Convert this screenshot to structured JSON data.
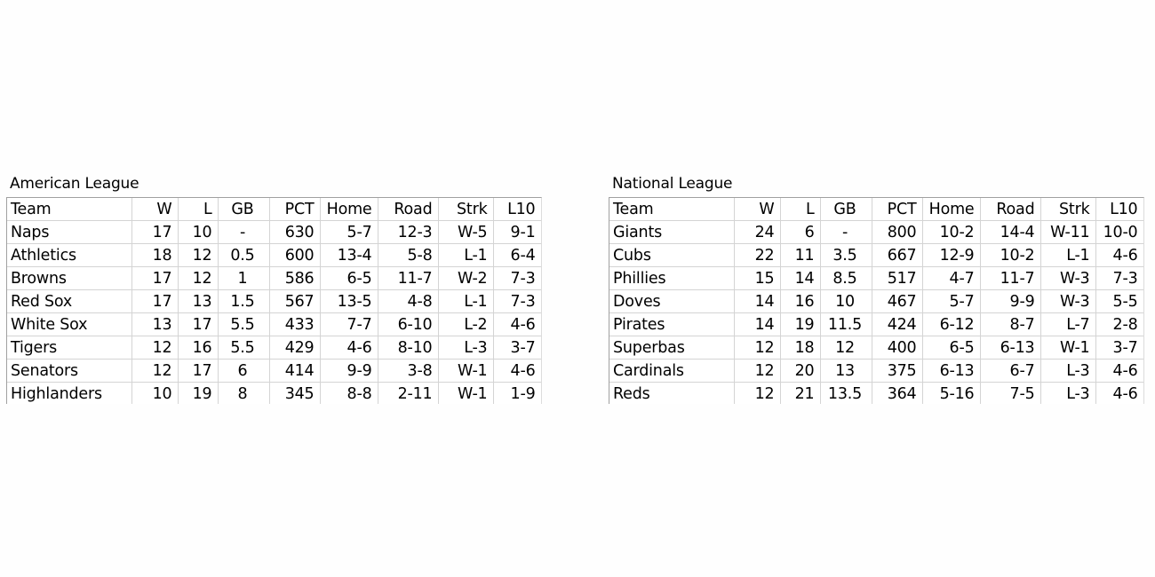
{
  "columns": [
    "Team",
    "W",
    "L",
    "GB",
    "PCT",
    "Home",
    "Road",
    "Strk",
    "L10"
  ],
  "leagues": [
    {
      "title": "American League",
      "rows": [
        [
          "Naps",
          "17",
          "10",
          "-",
          "630",
          "5-7",
          "12-3",
          "W-5",
          "9-1"
        ],
        [
          "Athletics",
          "18",
          "12",
          "0.5",
          "600",
          "13-4",
          "5-8",
          "L-1",
          "6-4"
        ],
        [
          "Browns",
          "17",
          "12",
          "1",
          "586",
          "6-5",
          "11-7",
          "W-2",
          "7-3"
        ],
        [
          "Red Sox",
          "17",
          "13",
          "1.5",
          "567",
          "13-5",
          "4-8",
          "L-1",
          "7-3"
        ],
        [
          "White Sox",
          "13",
          "17",
          "5.5",
          "433",
          "7-7",
          "6-10",
          "L-2",
          "4-6"
        ],
        [
          "Tigers",
          "12",
          "16",
          "5.5",
          "429",
          "4-6",
          "8-10",
          "L-3",
          "3-7"
        ],
        [
          "Senators",
          "12",
          "17",
          "6",
          "414",
          "9-9",
          "3-8",
          "W-1",
          "4-6"
        ],
        [
          "Highlanders",
          "10",
          "19",
          "8",
          "345",
          "8-8",
          "2-11",
          "W-1",
          "1-9"
        ]
      ]
    },
    {
      "title": "National League",
      "rows": [
        [
          "Giants",
          "24",
          "6",
          "-",
          "800",
          "10-2",
          "14-4",
          "W-11",
          "10-0"
        ],
        [
          "Cubs",
          "22",
          "11",
          "3.5",
          "667",
          "12-9",
          "10-2",
          "L-1",
          "4-6"
        ],
        [
          "Phillies",
          "15",
          "14",
          "8.5",
          "517",
          "4-7",
          "11-7",
          "W-3",
          "7-3"
        ],
        [
          "Doves",
          "14",
          "16",
          "10",
          "467",
          "5-7",
          "9-9",
          "W-3",
          "5-5"
        ],
        [
          "Pirates",
          "14",
          "19",
          "11.5",
          "424",
          "6-12",
          "8-7",
          "L-7",
          "2-8"
        ],
        [
          "Superbas",
          "12",
          "18",
          "12",
          "400",
          "6-5",
          "6-13",
          "W-1",
          "3-7"
        ],
        [
          "Cardinals",
          "12",
          "20",
          "13",
          "375",
          "6-13",
          "6-7",
          "L-3",
          "4-6"
        ],
        [
          "Reds",
          "12",
          "21",
          "13.5",
          "364",
          "5-16",
          "7-5",
          "L-3",
          "4-6"
        ]
      ]
    }
  ]
}
